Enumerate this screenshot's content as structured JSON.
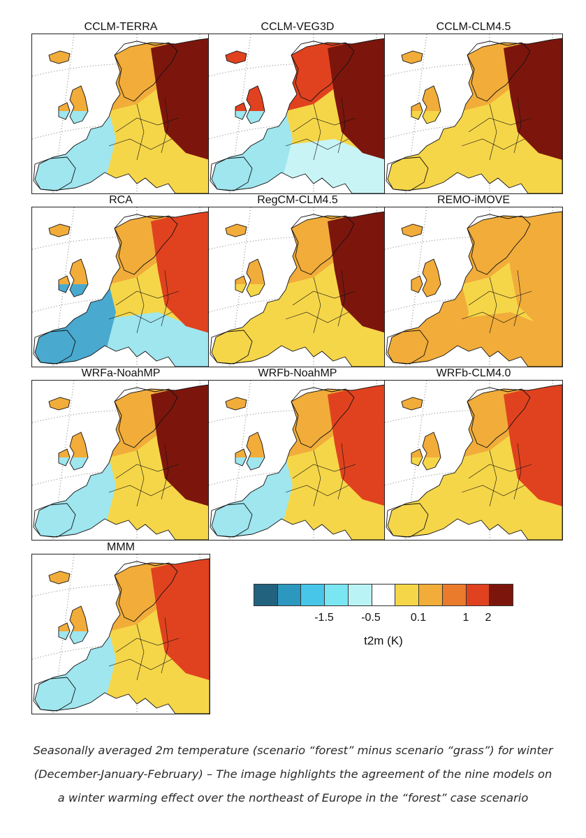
{
  "panels": [
    {
      "title": "CCLM-TERRA",
      "west": "cyan",
      "north": "orange",
      "east": "darkred",
      "south": "yellow"
    },
    {
      "title": "CCLM-VEG3D",
      "west": "cyan",
      "north": "red",
      "east": "darkred",
      "south": "lightcyan"
    },
    {
      "title": "CCLM-CLM4.5",
      "west": "yellow",
      "north": "orange",
      "east": "darkred",
      "south": "yellow"
    },
    {
      "title": "RCA",
      "west": "blue",
      "north": "orange",
      "east": "red",
      "south": "cyan"
    },
    {
      "title": "RegCM-CLM4.5",
      "west": "yellow",
      "north": "orange",
      "east": "darkred",
      "south": "yellow"
    },
    {
      "title": "REMO-iMOVE",
      "west": "orange",
      "north": "orange",
      "east": "orange",
      "south": "orange"
    },
    {
      "title": "WRFa-NoahMP",
      "west": "cyan",
      "north": "orange",
      "east": "darkred",
      "south": "yellow"
    },
    {
      "title": "WRFb-NoahMP",
      "west": "cyan",
      "north": "orange",
      "east": "red",
      "south": "yellow"
    },
    {
      "title": "WRFb-CLM4.0",
      "west": "yellow",
      "north": "orange",
      "east": "red",
      "south": "yellow"
    },
    {
      "title": "MMM",
      "west": "cyan",
      "north": "orange",
      "east": "red",
      "south": "yellow"
    }
  ],
  "legend": {
    "colors": [
      "#22627f",
      "#2d98bf",
      "#47c6ea",
      "#7ae6f2",
      "#b9f3f5",
      "#ffffff",
      "#f6d649",
      "#f1ac3a",
      "#ea7a2c",
      "#e0421f",
      "#7c160d"
    ],
    "ticks": [
      "-1.5",
      "-0.5",
      "0.1",
      "1",
      "2"
    ],
    "label": "t2m (K)"
  },
  "palette": {
    "blue": "#4aa9cf",
    "cyan": "#9fe6ef",
    "lightcyan": "#c9f4f6",
    "white": "#ffffff",
    "yellow": "#f6d649",
    "orange": "#f1ac3a",
    "darkorange": "#ea7a2c",
    "red": "#e0421f",
    "darkred": "#7c160d"
  },
  "caption": {
    "line1": "Seasonally averaged 2m temperature (scenario “forest” minus scenario “grass”) for winter",
    "line2": "(December-January-February) – The image highlights the agreement of the nine models on",
    "line3": "a winter warming effect over the northeast of Europe in the “forest” case scenario"
  }
}
